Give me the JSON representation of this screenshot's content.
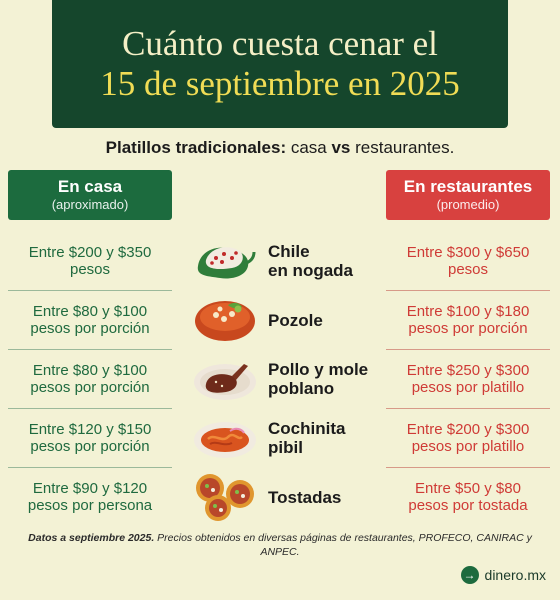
{
  "title": {
    "line1": "Cuánto cuesta cenar el",
    "line2": "15 de septiembre en 2025"
  },
  "subtitle": {
    "bold": "Platillos tradicionales:",
    "t1": " casa ",
    "vs": "vs",
    "t2": " restaurantes."
  },
  "columns": {
    "casa": {
      "label": "En casa",
      "sub": "(aproximado)",
      "color": "#1c6b3e"
    },
    "restaurantes": {
      "label": "En restaurantes",
      "sub": "(promedio)",
      "color": "#d8413f"
    }
  },
  "rows": [
    {
      "casa_1": "Entre $200 y $350",
      "casa_2": "pesos",
      "dish": "Chile\nen nogada",
      "icon": "chile-en-nogada-icon",
      "rest_1": "Entre $300 y $650",
      "rest_2": "pesos"
    },
    {
      "casa_1": "Entre $80 y $100",
      "casa_2": "pesos por porción",
      "dish": "Pozole",
      "icon": "pozole-icon",
      "rest_1": "Entre $100 y $180",
      "rest_2": "pesos por porción"
    },
    {
      "casa_1": "Entre $80 y $100",
      "casa_2": "pesos por porción",
      "dish": "Pollo y mole\npoblano",
      "icon": "mole-poblano-icon",
      "rest_1": "Entre $250 y $300",
      "rest_2": "pesos por platillo"
    },
    {
      "casa_1": "Entre $120 y $150",
      "casa_2": "pesos por porción",
      "dish": "Cochinita\npibil",
      "icon": "cochinita-pibil-icon",
      "rest_1": "Entre $200 y $300",
      "rest_2": "pesos por platillo"
    },
    {
      "casa_1": "Entre $90 y $120",
      "casa_2": "pesos por persona",
      "dish": "Tostadas",
      "icon": "tostadas-icon",
      "rest_1": "Entre $50 y $80",
      "rest_2": "pesos por tostada"
    }
  ],
  "footnote": {
    "bold": "Datos a septiembre 2025.",
    "text": " Precios obtenidos en diversas páginas de restaurantes, PROFECO, CANIRAC y ANPEC."
  },
  "brand": {
    "name": "dinero.mx",
    "icon": "arrow-right-icon"
  }
}
